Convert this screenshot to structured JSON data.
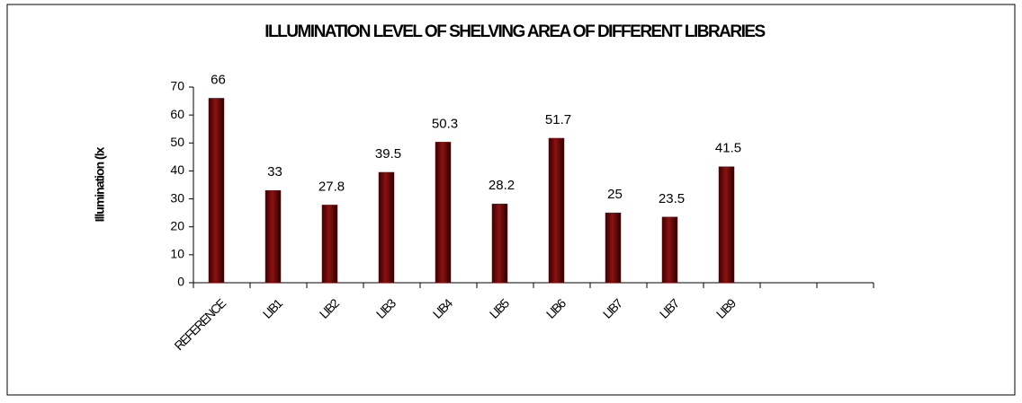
{
  "chart_data": {
    "type": "bar",
    "title": "ILLUMINATION LEVEL OF SHELVING AREA OF DIFFERENT LIBRARIES",
    "y_label": "Illumination (lx",
    "categories": [
      "REFERENCE",
      "LIB1",
      "LIB2",
      "LIB3",
      "LIB4",
      "LIB5",
      "LIB6",
      "LIB7",
      "LIB7",
      "LIB9",
      null,
      null
    ],
    "values": [
      66,
      33,
      27.8,
      39.5,
      50.3,
      28.2,
      51.7,
      25,
      23.5,
      41.5,
      null,
      null
    ],
    "color": "#7a0c0c",
    "ylim": [
      0,
      70
    ],
    "yticks": [
      0,
      10,
      20,
      30,
      40,
      50,
      60,
      70
    ],
    "grid": false
  }
}
